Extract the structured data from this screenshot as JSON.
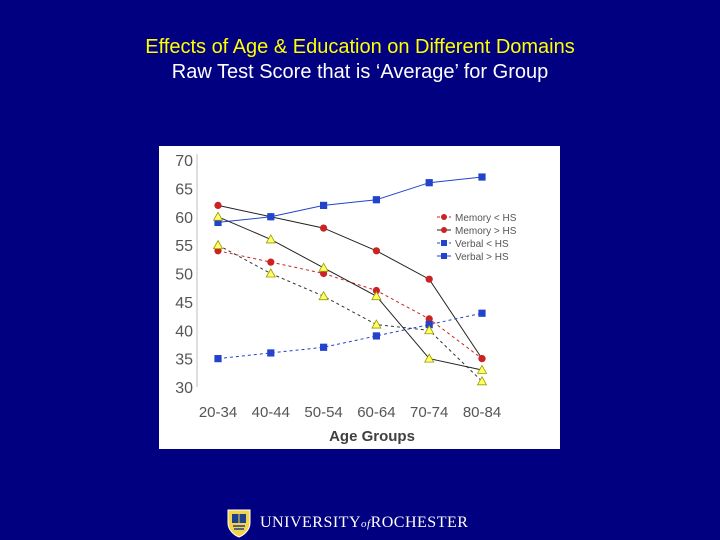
{
  "slide": {
    "title": "Effects of Age & Education on Different Domains",
    "subtitle": "Raw Test Score that is ‘Average’ for Group"
  },
  "colors": {
    "background": "#000080",
    "title": "#ffff00",
    "subtitle": "#ffffff",
    "memory": "#cc2222",
    "verbal": "#2244cc",
    "triangle_fill": "#ffff66",
    "triangle_stroke": "#888800"
  },
  "footer": {
    "logo_icon": "university-shield-icon",
    "pre": "UNIVERSITY",
    "of": "of",
    "post": "ROCHESTER"
  },
  "chart_data": {
    "type": "line",
    "title": "",
    "xlabel": "Age Groups",
    "ylabel": "",
    "categories": [
      "20-34",
      "40-44",
      "50-54",
      "60-64",
      "70-74",
      "80-84"
    ],
    "ylim": [
      30,
      70
    ],
    "yticks": [
      30,
      35,
      40,
      45,
      50,
      55,
      60,
      65,
      70
    ],
    "grid": false,
    "legend_position": "right",
    "series": [
      {
        "name": "Memory < HS",
        "values": [
          54,
          52,
          50,
          47,
          42,
          35
        ],
        "color": "#cc2222",
        "marker": "circle",
        "line": "dashed-red"
      },
      {
        "name": "Memory > HS",
        "values": [
          62,
          60,
          58,
          54,
          49,
          35
        ],
        "color": "#cc2222",
        "marker": "circle",
        "line": "solid-black"
      },
      {
        "name": "Verbal < HS",
        "values": [
          35,
          36,
          37,
          39,
          41,
          43
        ],
        "color": "#2244cc",
        "marker": "square",
        "line": "dashed-blue"
      },
      {
        "name": "Verbal > HS",
        "values": [
          59,
          60,
          62,
          63,
          66,
          67
        ],
        "color": "#2244cc",
        "marker": "square",
        "line": "solid-blue"
      },
      {
        "name": "",
        "values": [
          55,
          50,
          46,
          41,
          40,
          31
        ],
        "color": "#ffff66",
        "marker": "triangle",
        "line": "dashed-black"
      },
      {
        "name": "",
        "values": [
          60,
          56,
          51,
          46,
          35,
          33
        ],
        "color": "#ffff66",
        "marker": "triangle",
        "line": "solid-black"
      }
    ]
  }
}
